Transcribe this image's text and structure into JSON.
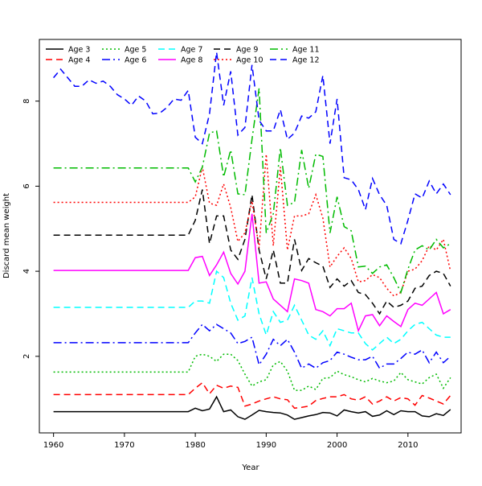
{
  "chart_data": {
    "type": "line",
    "title": "",
    "xlabel": "Year",
    "ylabel": "Discard mean weight",
    "xlim": [
      1958,
      2017.5
    ],
    "ylim": [
      0.2,
      9.45
    ],
    "xticks": [
      1960,
      1970,
      1980,
      1990,
      2000,
      2010
    ],
    "yticks": [
      2,
      4,
      6,
      8
    ],
    "grid": false,
    "legend_position": "top-left",
    "x": [
      1960,
      1961,
      1962,
      1963,
      1964,
      1965,
      1966,
      1967,
      1968,
      1969,
      1970,
      1971,
      1972,
      1973,
      1974,
      1975,
      1976,
      1977,
      1978,
      1979,
      1980,
      1981,
      1982,
      1983,
      1984,
      1985,
      1986,
      1987,
      1988,
      1989,
      1990,
      1991,
      1992,
      1993,
      1994,
      1995,
      1996,
      1997,
      1998,
      1999,
      2000,
      2001,
      2002,
      2003,
      2004,
      2005,
      2006,
      2007,
      2008,
      2009,
      2010,
      2011,
      2012,
      2013,
      2014,
      2015,
      2016
    ],
    "series": [
      {
        "name": "Age 3",
        "color": "#000000",
        "dash": "solid",
        "values": [
          0.7,
          0.7,
          0.7,
          0.7,
          0.7,
          0.7,
          0.7,
          0.7,
          0.7,
          0.7,
          0.7,
          0.7,
          0.7,
          0.7,
          0.7,
          0.7,
          0.7,
          0.7,
          0.7,
          0.7,
          0.78,
          0.72,
          0.76,
          1.05,
          0.7,
          0.74,
          0.58,
          0.52,
          0.62,
          0.73,
          0.7,
          0.68,
          0.67,
          0.62,
          0.52,
          0.56,
          0.6,
          0.63,
          0.68,
          0.67,
          0.6,
          0.74,
          0.7,
          0.67,
          0.7,
          0.59,
          0.62,
          0.72,
          0.63,
          0.72,
          0.7,
          0.7,
          0.6,
          0.58,
          0.65,
          0.61,
          0.75
        ]
      },
      {
        "name": "Age 4",
        "color": "#ff0000",
        "dash": "8,5",
        "values": [
          1.1,
          1.1,
          1.1,
          1.1,
          1.1,
          1.1,
          1.1,
          1.1,
          1.1,
          1.1,
          1.1,
          1.1,
          1.1,
          1.1,
          1.1,
          1.1,
          1.1,
          1.1,
          1.1,
          1.1,
          1.25,
          1.38,
          1.12,
          1.32,
          1.25,
          1.3,
          1.27,
          0.83,
          0.88,
          0.95,
          1.0,
          1.05,
          1.0,
          0.98,
          0.78,
          0.8,
          0.83,
          0.96,
          1.01,
          1.05,
          1.05,
          1.1,
          1.0,
          0.97,
          1.05,
          0.88,
          0.95,
          1.05,
          0.95,
          1.03,
          1.0,
          0.85,
          1.08,
          1.02,
          0.95,
          0.88,
          1.08
        ]
      },
      {
        "name": "Age 5",
        "color": "#00bb00",
        "dash": "2,3",
        "values": [
          1.63,
          1.63,
          1.63,
          1.63,
          1.63,
          1.63,
          1.63,
          1.63,
          1.63,
          1.63,
          1.63,
          1.63,
          1.63,
          1.63,
          1.63,
          1.63,
          1.63,
          1.63,
          1.63,
          1.63,
          2.0,
          2.05,
          2.0,
          1.88,
          2.05,
          2.05,
          1.9,
          1.58,
          1.3,
          1.4,
          1.45,
          1.8,
          1.88,
          1.65,
          1.2,
          1.2,
          1.3,
          1.22,
          1.48,
          1.5,
          1.65,
          1.57,
          1.52,
          1.45,
          1.4,
          1.48,
          1.42,
          1.38,
          1.42,
          1.62,
          1.45,
          1.4,
          1.35,
          1.5,
          1.58,
          1.25,
          1.5
        ]
      },
      {
        "name": "Age 6",
        "color": "#0000ff",
        "dash": "10,4,2,4",
        "values": [
          2.32,
          2.32,
          2.32,
          2.32,
          2.32,
          2.32,
          2.32,
          2.32,
          2.32,
          2.32,
          2.32,
          2.32,
          2.32,
          2.32,
          2.32,
          2.32,
          2.32,
          2.32,
          2.32,
          2.32,
          2.55,
          2.75,
          2.6,
          2.75,
          2.65,
          2.55,
          2.3,
          2.35,
          2.45,
          1.8,
          2.05,
          2.4,
          2.25,
          2.4,
          2.1,
          1.72,
          1.82,
          1.72,
          1.85,
          1.9,
          2.1,
          2.05,
          1.98,
          1.92,
          1.92,
          2.0,
          1.72,
          1.82,
          1.82,
          1.95,
          2.1,
          2.05,
          2.15,
          1.85,
          2.1,
          1.85,
          2.0
        ]
      },
      {
        "name": "Age 7",
        "color": "#00ffff",
        "dash": "8,5",
        "values": [
          3.15,
          3.15,
          3.15,
          3.15,
          3.15,
          3.15,
          3.15,
          3.15,
          3.15,
          3.15,
          3.15,
          3.15,
          3.15,
          3.15,
          3.15,
          3.15,
          3.15,
          3.15,
          3.15,
          3.15,
          3.3,
          3.3,
          3.25,
          4.0,
          3.85,
          3.25,
          2.85,
          2.95,
          3.85,
          3.0,
          2.5,
          3.05,
          2.8,
          2.85,
          3.2,
          2.85,
          2.5,
          2.4,
          2.6,
          2.25,
          2.65,
          2.6,
          2.55,
          2.55,
          2.3,
          2.15,
          2.3,
          2.45,
          2.3,
          2.4,
          2.6,
          2.75,
          2.8,
          2.65,
          2.5,
          2.45,
          2.45
        ]
      },
      {
        "name": "Age 8",
        "color": "#ff00ff",
        "dash": "solid",
        "values": [
          4.02,
          4.02,
          4.02,
          4.02,
          4.02,
          4.02,
          4.02,
          4.02,
          4.02,
          4.02,
          4.02,
          4.02,
          4.02,
          4.02,
          4.02,
          4.02,
          4.02,
          4.02,
          4.02,
          4.02,
          4.32,
          4.35,
          3.9,
          4.15,
          4.45,
          3.95,
          3.7,
          4.0,
          5.35,
          3.72,
          3.75,
          3.35,
          3.2,
          3.05,
          3.82,
          3.78,
          3.72,
          3.1,
          3.05,
          2.95,
          3.12,
          3.12,
          3.25,
          2.6,
          2.95,
          2.98,
          2.72,
          2.95,
          2.82,
          2.7,
          3.1,
          3.25,
          3.2,
          3.35,
          3.5,
          3.0,
          3.1
        ]
      },
      {
        "name": "Age 9",
        "color": "#000000",
        "dash": "8,5",
        "values": [
          4.85,
          4.85,
          4.85,
          4.85,
          4.85,
          4.85,
          4.85,
          4.85,
          4.85,
          4.85,
          4.85,
          4.85,
          4.85,
          4.85,
          4.85,
          4.85,
          4.85,
          4.85,
          4.85,
          4.85,
          5.2,
          5.92,
          4.65,
          5.3,
          5.3,
          4.5,
          4.28,
          4.75,
          5.8,
          4.5,
          3.82,
          4.5,
          3.72,
          3.72,
          4.75,
          4.02,
          4.3,
          4.2,
          4.12,
          3.62,
          3.82,
          3.65,
          3.78,
          3.5,
          3.45,
          3.25,
          3.0,
          3.3,
          3.15,
          3.2,
          3.3,
          3.6,
          3.65,
          3.9,
          4.0,
          3.95,
          3.65
        ]
      },
      {
        "name": "Age 10",
        "color": "#ff0000",
        "dash": "2,3",
        "values": [
          5.62,
          5.62,
          5.62,
          5.62,
          5.62,
          5.62,
          5.62,
          5.62,
          5.62,
          5.62,
          5.62,
          5.62,
          5.62,
          5.62,
          5.62,
          5.62,
          5.62,
          5.62,
          5.62,
          5.62,
          5.75,
          6.45,
          5.6,
          5.55,
          6.05,
          5.5,
          4.7,
          4.9,
          5.65,
          4.55,
          6.75,
          4.6,
          6.45,
          4.5,
          5.3,
          5.3,
          5.35,
          5.8,
          5.25,
          4.1,
          4.35,
          4.55,
          4.3,
          3.75,
          3.78,
          3.92,
          3.85,
          3.6,
          3.42,
          3.5,
          4.0,
          4.05,
          4.25,
          4.6,
          4.5,
          4.75,
          4.0
        ]
      },
      {
        "name": "Age 11",
        "color": "#00bb00",
        "dash": "10,4,2,4",
        "values": [
          6.43,
          6.43,
          6.43,
          6.43,
          6.43,
          6.43,
          6.43,
          6.43,
          6.43,
          6.43,
          6.43,
          6.43,
          6.43,
          6.43,
          6.43,
          6.43,
          6.43,
          6.43,
          6.43,
          6.43,
          6.1,
          6.45,
          7.25,
          7.3,
          6.22,
          6.85,
          5.82,
          5.8,
          7.1,
          8.3,
          4.9,
          5.35,
          6.9,
          5.55,
          5.62,
          6.85,
          5.95,
          6.75,
          6.7,
          4.9,
          5.75,
          5.05,
          4.95,
          4.1,
          4.12,
          3.95,
          4.1,
          4.15,
          3.85,
          3.5,
          4.05,
          4.5,
          4.6,
          4.5,
          4.75,
          4.55,
          4.65
        ]
      },
      {
        "name": "Age 12",
        "color": "#0000ff",
        "dash": "8,5",
        "values": [
          8.55,
          8.75,
          8.55,
          8.35,
          8.35,
          8.5,
          8.42,
          8.47,
          8.35,
          8.15,
          8.05,
          7.9,
          8.12,
          8.0,
          7.7,
          7.72,
          7.85,
          8.05,
          8.02,
          8.25,
          7.15,
          7.0,
          7.7,
          9.15,
          7.9,
          8.7,
          7.2,
          7.38,
          8.85,
          7.55,
          7.3,
          7.3,
          7.8,
          7.1,
          7.25,
          7.65,
          7.6,
          7.75,
          8.6,
          7.0,
          8.05,
          6.2,
          6.15,
          5.92,
          5.45,
          6.18,
          5.8,
          5.55,
          4.75,
          4.65,
          5.2,
          5.82,
          5.72,
          6.12,
          5.82,
          6.05,
          5.8
        ]
      }
    ]
  }
}
